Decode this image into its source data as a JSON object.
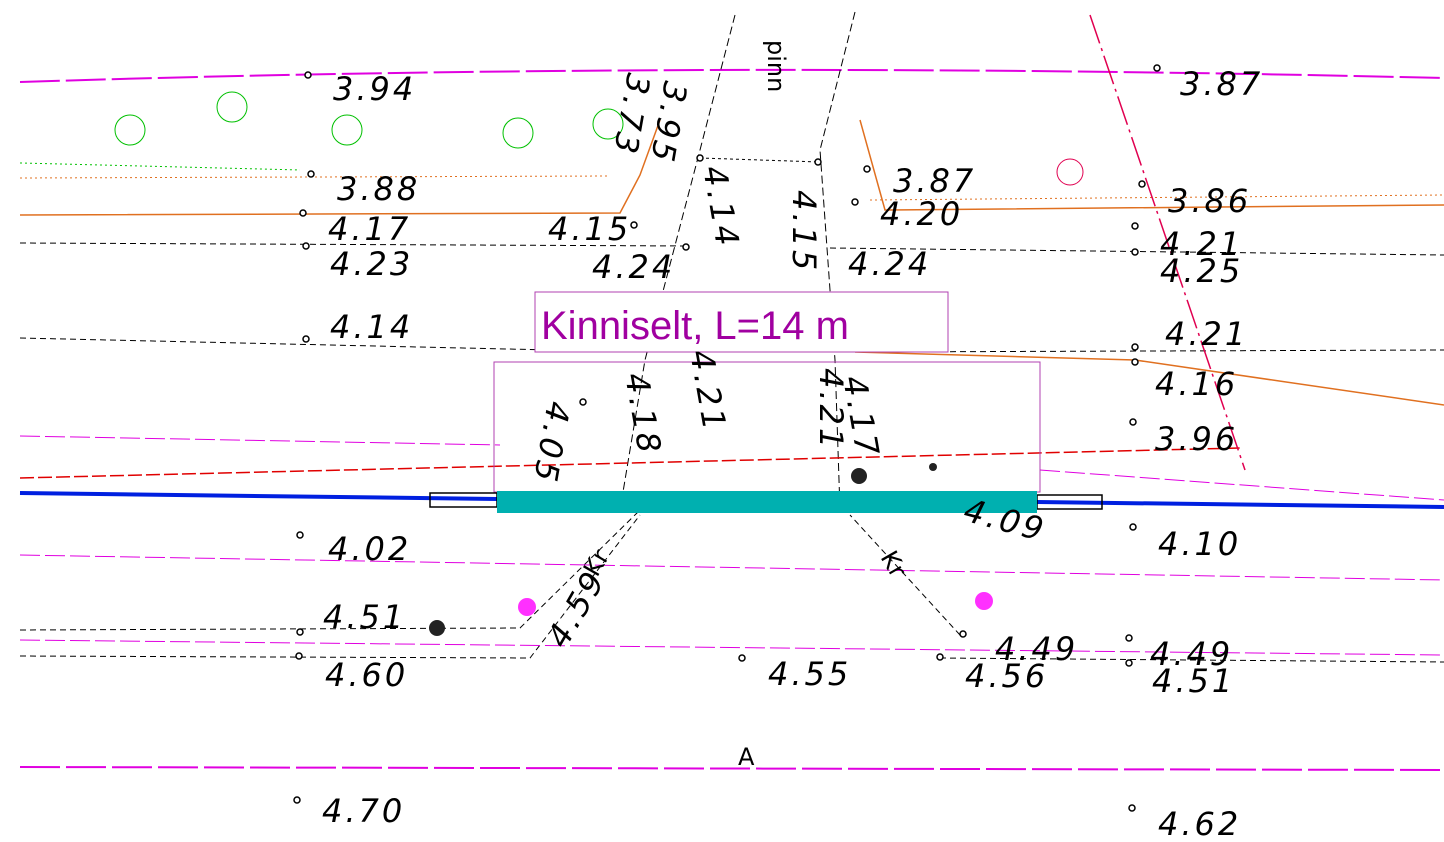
{
  "title": "Kinniselt, L=14 m",
  "street_name": "pinn",
  "road_label": "A",
  "ditch_labels": [
    "Kr",
    "Kr"
  ],
  "elevations": [
    "3.94",
    "3.87",
    "3.88",
    "4.17",
    "4.23",
    "3.73",
    "3.95",
    "4.15",
    "4.24",
    "4.14",
    "4.15",
    "4.24",
    "3.87",
    "4.20",
    "3.86",
    "4.21",
    "4.25",
    "4.14",
    "4.21",
    "4.16",
    "3.96",
    "4.05",
    "4.18",
    "4.21",
    "4.21",
    "4.17",
    "4.09",
    "4.02",
    "4.10",
    "4.51",
    "4.59",
    "4.49",
    "4.49",
    "4.56",
    "4.51",
    "4.60",
    "4.55",
    "4.70",
    "4.62"
  ]
}
